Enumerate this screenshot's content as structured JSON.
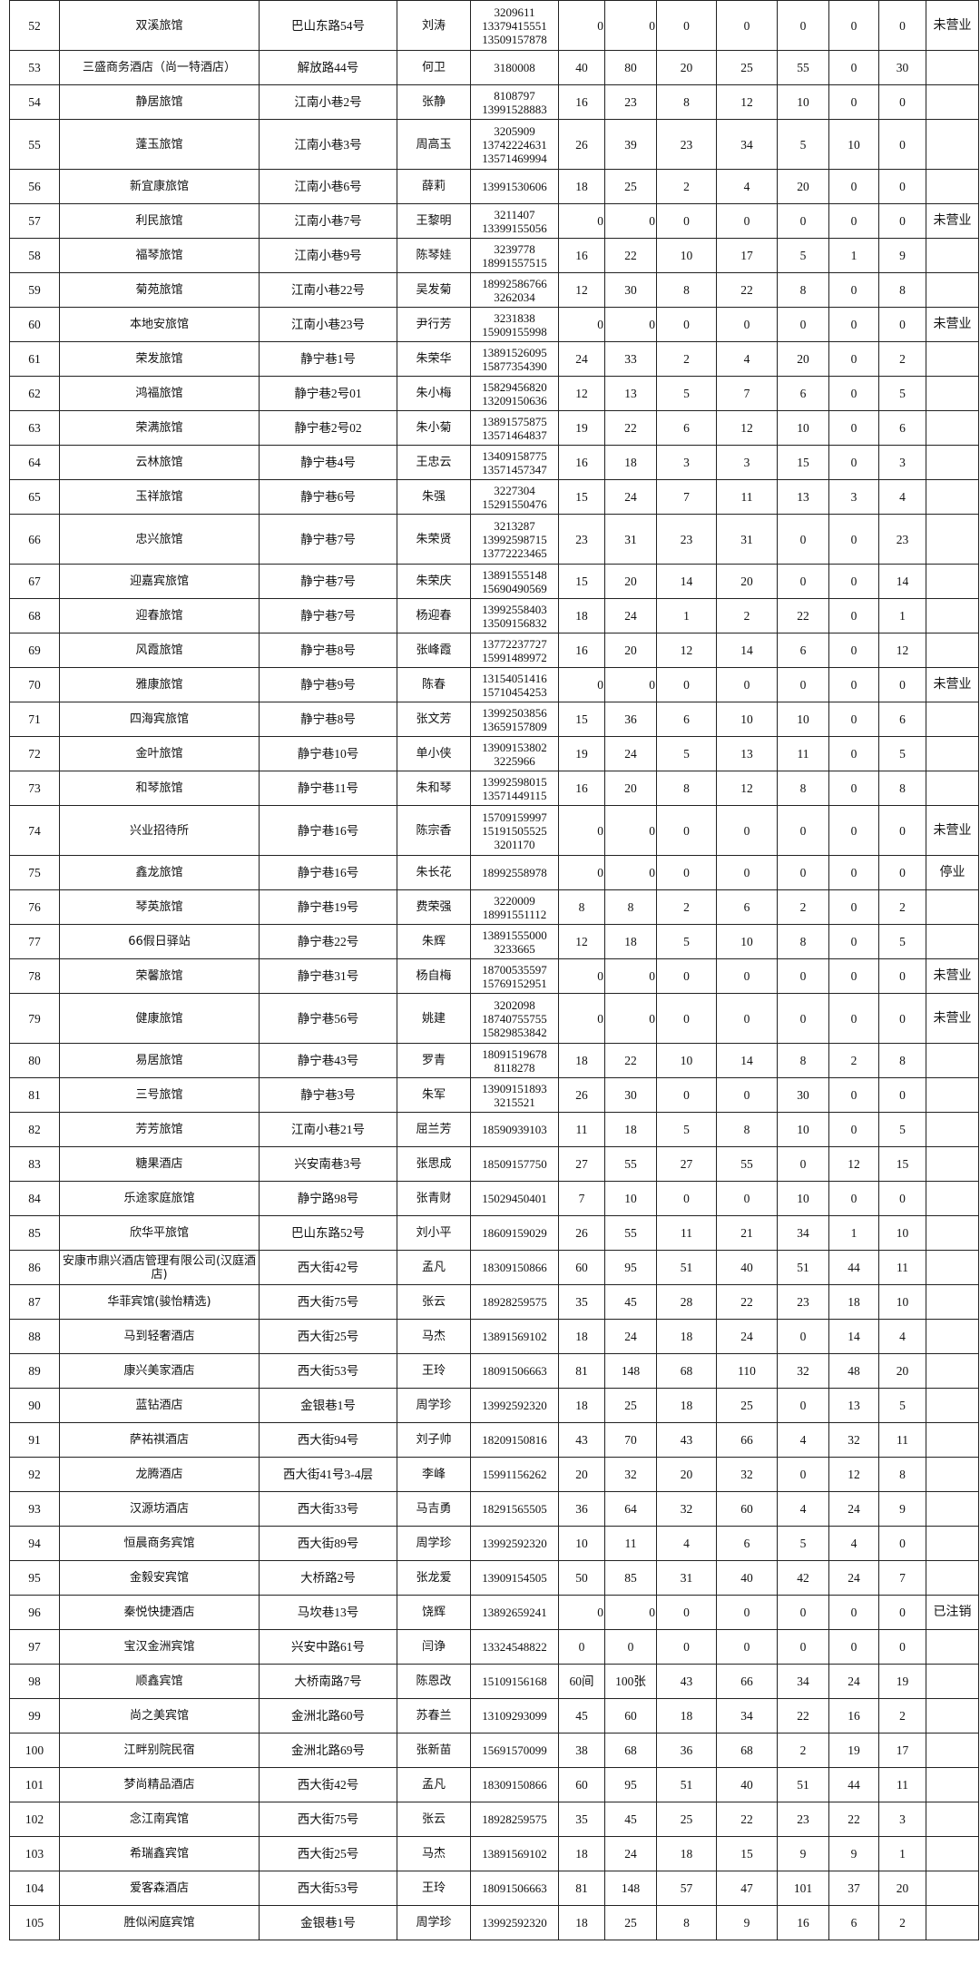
{
  "rows": [
    {
      "no": "52",
      "name": "双溪旅馆",
      "address": "巴山东路54号",
      "person": "刘涛",
      "phone": "3209611\n13379415551\n13509157878",
      "v": [
        "0",
        "0",
        "0",
        "0",
        "0",
        "0",
        "0"
      ],
      "remark": "未营业"
    },
    {
      "no": "53",
      "name": "三盛商务酒店（尚一特酒店）",
      "address": "解放路44号",
      "person": "何卫",
      "phone": "3180008",
      "v": [
        "40",
        "80",
        "20",
        "25",
        "55",
        "0",
        "30"
      ],
      "remark": ""
    },
    {
      "no": "54",
      "name": "静居旅馆",
      "address": "江南小巷2号",
      "person": "张静",
      "phone": "8108797\n13991528883",
      "v": [
        "16",
        "23",
        "8",
        "12",
        "10",
        "0",
        "0"
      ],
      "remark": ""
    },
    {
      "no": "55",
      "name": "蓬玉旅馆",
      "address": "江南小巷3号",
      "person": "周高玉",
      "phone": "3205909\n13742224631\n13571469994",
      "v": [
        "26",
        "39",
        "23",
        "34",
        "5",
        "10",
        "0"
      ],
      "remark": ""
    },
    {
      "no": "56",
      "name": "新宜康旅馆",
      "address": "江南小巷6号",
      "person": "薛莉",
      "phone": "13991530606",
      "v": [
        "18",
        "25",
        "2",
        "4",
        "20",
        "0",
        "0"
      ],
      "remark": ""
    },
    {
      "no": "57",
      "name": "利民旅馆",
      "address": "江南小巷7号",
      "person": "王黎明",
      "phone": "3211407\n13399155056",
      "v": [
        "0",
        "0",
        "0",
        "0",
        "0",
        "0",
        "0"
      ],
      "remark": "未营业"
    },
    {
      "no": "58",
      "name": "福琴旅馆",
      "address": "江南小巷9号",
      "person": "陈琴娃",
      "phone": "3239778\n18991557515",
      "v": [
        "16",
        "22",
        "10",
        "17",
        "5",
        "1",
        "9"
      ],
      "remark": ""
    },
    {
      "no": "59",
      "name": "菊苑旅馆",
      "address": "江南小巷22号",
      "person": "吴发菊",
      "phone": "18992586766\n3262034",
      "v": [
        "12",
        "30",
        "8",
        "22",
        "8",
        "0",
        "8"
      ],
      "remark": ""
    },
    {
      "no": "60",
      "name": "本地安旅馆",
      "address": "江南小巷23号",
      "person": "尹行芳",
      "phone": "3231838\n15909155998",
      "v": [
        "0",
        "0",
        "0",
        "0",
        "0",
        "0",
        "0"
      ],
      "remark": "未营业"
    },
    {
      "no": "61",
      "name": "荣发旅馆",
      "address": "静宁巷1号",
      "person": "朱荣华",
      "phone": "13891526095\n15877354390",
      "v": [
        "24",
        "33",
        "2",
        "4",
        "20",
        "0",
        "2"
      ],
      "remark": ""
    },
    {
      "no": "62",
      "name": "鸿福旅馆",
      "address": "静宁巷2号01",
      "person": "朱小梅",
      "phone": "15829456820\n13209150636",
      "v": [
        "12",
        "13",
        "5",
        "7",
        "6",
        "0",
        "5"
      ],
      "remark": ""
    },
    {
      "no": "63",
      "name": "荣满旅馆",
      "address": "静宁巷2号02",
      "person": "朱小菊",
      "phone": "13891575875\n13571464837",
      "v": [
        "19",
        "22",
        "6",
        "12",
        "10",
        "0",
        "6"
      ],
      "remark": ""
    },
    {
      "no": "64",
      "name": "云林旅馆",
      "address": "静宁巷4号",
      "person": "王忠云",
      "phone": "13409158775\n13571457347",
      "v": [
        "16",
        "18",
        "3",
        "3",
        "15",
        "0",
        "3"
      ],
      "remark": ""
    },
    {
      "no": "65",
      "name": "玉祥旅馆",
      "address": "静宁巷6号",
      "person": "朱强",
      "phone": "3227304\n15291550476",
      "v": [
        "15",
        "24",
        "7",
        "11",
        "13",
        "3",
        "4"
      ],
      "remark": ""
    },
    {
      "no": "66",
      "name": "忠兴旅馆",
      "address": "静宁巷7号",
      "person": "朱荣贤",
      "phone": "3213287\n13992598715\n13772223465",
      "v": [
        "23",
        "31",
        "23",
        "31",
        "0",
        "0",
        "23"
      ],
      "remark": ""
    },
    {
      "no": "67",
      "name": "迎嘉宾旅馆",
      "address": "静宁巷7号",
      "person": "朱荣庆",
      "phone": "13891555148\n15690490569",
      "v": [
        "15",
        "20",
        "14",
        "20",
        "0",
        "0",
        "14"
      ],
      "remark": ""
    },
    {
      "no": "68",
      "name": "迎春旅馆",
      "address": "静宁巷7号",
      "person": "杨迎春",
      "phone": "13992558403\n13509156832",
      "v": [
        "18",
        "24",
        "1",
        "2",
        "22",
        "0",
        "1"
      ],
      "remark": ""
    },
    {
      "no": "69",
      "name": "风霞旅馆",
      "address": "静宁巷8号",
      "person": "张峰霞",
      "phone": "13772237727\n15991489972",
      "v": [
        "16",
        "20",
        "12",
        "14",
        "6",
        "0",
        "12"
      ],
      "remark": ""
    },
    {
      "no": "70",
      "name": "雅康旅馆",
      "address": "静宁巷9号",
      "person": "陈春",
      "phone": "13154051416\n15710454253",
      "v": [
        "0",
        "0",
        "0",
        "0",
        "0",
        "0",
        "0"
      ],
      "remark": "未营业"
    },
    {
      "no": "71",
      "name": "四海宾旅馆",
      "address": "静宁巷8号",
      "person": "张文芳",
      "phone": "13992503856\n13659157809",
      "v": [
        "15",
        "36",
        "6",
        "10",
        "10",
        "0",
        "6"
      ],
      "remark": ""
    },
    {
      "no": "72",
      "name": "金叶旅馆",
      "address": "静宁巷10号",
      "person": "单小侠",
      "phone": "13909153802\n3225966",
      "v": [
        "19",
        "24",
        "5",
        "13",
        "11",
        "0",
        "5"
      ],
      "remark": ""
    },
    {
      "no": "73",
      "name": "和琴旅馆",
      "address": "静宁巷11号",
      "person": "朱和琴",
      "phone": "13992598015\n13571449115",
      "v": [
        "16",
        "20",
        "8",
        "12",
        "8",
        "0",
        "8"
      ],
      "remark": ""
    },
    {
      "no": "74",
      "name": "兴业招待所",
      "address": "静宁巷16号",
      "person": "陈宗香",
      "phone": "15709159997\n15191505525\n3201170",
      "v": [
        "0",
        "0",
        "0",
        "0",
        "0",
        "0",
        "0"
      ],
      "remark": "未营业"
    },
    {
      "no": "75",
      "name": "鑫龙旅馆",
      "address": "静宁巷16号",
      "person": "朱长花",
      "phone": "18992558978",
      "v": [
        "0",
        "0",
        "0",
        "0",
        "0",
        "0",
        "0"
      ],
      "remark": "停业"
    },
    {
      "no": "76",
      "name": "琴英旅馆",
      "address": "静宁巷19号",
      "person": "费荣强",
      "phone": "3220009\n18991551112",
      "v": [
        "8",
        "8",
        "2",
        "6",
        "2",
        "0",
        "2"
      ],
      "remark": ""
    },
    {
      "no": "77",
      "name": "66假日驿站",
      "address": "静宁巷22号",
      "person": "朱辉",
      "phone": "13891555000\n3233665",
      "v": [
        "12",
        "18",
        "5",
        "10",
        "8",
        "0",
        "5"
      ],
      "remark": ""
    },
    {
      "no": "78",
      "name": "荣馨旅馆",
      "address": "静宁巷31号",
      "person": "杨自梅",
      "phone": "18700535597\n15769152951",
      "v": [
        "0",
        "0",
        "0",
        "0",
        "0",
        "0",
        "0"
      ],
      "remark": "未营业"
    },
    {
      "no": "79",
      "name": "健康旅馆",
      "address": "静宁巷56号",
      "person": "姚建",
      "phone": "3202098\n18740755755\n15829853842",
      "v": [
        "0",
        "0",
        "0",
        "0",
        "0",
        "0",
        "0"
      ],
      "remark": "未营业"
    },
    {
      "no": "80",
      "name": "易居旅馆",
      "address": "静宁巷43号",
      "person": "罗青",
      "phone": "18091519678\n8118278",
      "v": [
        "18",
        "22",
        "10",
        "14",
        "8",
        "2",
        "8"
      ],
      "remark": ""
    },
    {
      "no": "81",
      "name": "三号旅馆",
      "address": "静宁巷3号",
      "person": "朱军",
      "phone": "13909151893\n3215521",
      "v": [
        "26",
        "30",
        "0",
        "0",
        "30",
        "0",
        "0"
      ],
      "remark": ""
    },
    {
      "no": "82",
      "name": "芳芳旅馆",
      "address": "江南小巷21号",
      "person": "屈兰芳",
      "phone": "18590939103",
      "v": [
        "11",
        "18",
        "5",
        "8",
        "10",
        "0",
        "5"
      ],
      "remark": ""
    },
    {
      "no": "83",
      "name": "糖果酒店",
      "address": "兴安南巷3号",
      "person": "张思成",
      "phone": "18509157750",
      "v": [
        "27",
        "55",
        "27",
        "55",
        "0",
        "12",
        "15"
      ],
      "remark": ""
    },
    {
      "no": "84",
      "name": "乐途家庭旅馆",
      "address": "静宁路98号",
      "person": "张青财",
      "phone": "15029450401",
      "v": [
        "7",
        "10",
        "0",
        "0",
        "10",
        "0",
        "0"
      ],
      "remark": ""
    },
    {
      "no": "85",
      "name": "欣华平旅馆",
      "address": "巴山东路52号",
      "person": "刘小平",
      "phone": "18609159029",
      "v": [
        "26",
        "55",
        "11",
        "21",
        "34",
        "1",
        "10"
      ],
      "remark": ""
    },
    {
      "no": "86",
      "name": "安康市鼎兴酒店管理有限公司(汉庭酒店)",
      "address": "西大街42号",
      "person": "孟凡",
      "phone": "18309150866",
      "v": [
        "60",
        "95",
        "51",
        "40",
        "51",
        "44",
        "11"
      ],
      "remark": ""
    },
    {
      "no": "87",
      "name": "华菲宾馆(骏怡精选)",
      "address": "西大街75号",
      "person": "张云",
      "phone": "18928259575",
      "v": [
        "35",
        "45",
        "28",
        "22",
        "23",
        "18",
        "10"
      ],
      "remark": ""
    },
    {
      "no": "88",
      "name": "马到轻奢酒店",
      "address": "西大街25号",
      "person": "马杰",
      "phone": "13891569102",
      "v": [
        "18",
        "24",
        "18",
        "24",
        "0",
        "14",
        "4"
      ],
      "remark": ""
    },
    {
      "no": "89",
      "name": "康兴美家酒店",
      "address": "西大街53号",
      "person": "王玲",
      "phone": "18091506663",
      "v": [
        "81",
        "148",
        "68",
        "110",
        "32",
        "48",
        "20"
      ],
      "remark": ""
    },
    {
      "no": "90",
      "name": "蓝钻酒店",
      "address": "金银巷1号",
      "person": "周学珍",
      "phone": "13992592320",
      "v": [
        "18",
        "25",
        "18",
        "25",
        "0",
        "13",
        "5"
      ],
      "remark": ""
    },
    {
      "no": "91",
      "name": "萨祐祺酒店",
      "address": "西大街94号",
      "person": "刘子帅",
      "phone": "18209150816",
      "v": [
        "43",
        "70",
        "43",
        "66",
        "4",
        "32",
        "11"
      ],
      "remark": ""
    },
    {
      "no": "92",
      "name": "龙腾酒店",
      "address": "西大街41号3-4层",
      "person": "李峰",
      "phone": "15991156262",
      "v": [
        "20",
        "32",
        "20",
        "32",
        "0",
        "12",
        "8"
      ],
      "remark": ""
    },
    {
      "no": "93",
      "name": "汉源坊酒店",
      "address": "西大街33号",
      "person": "马吉勇",
      "phone": "18291565505",
      "v": [
        "36",
        "64",
        "32",
        "60",
        "4",
        "24",
        "9"
      ],
      "remark": ""
    },
    {
      "no": "94",
      "name": "恒晨商务宾馆",
      "address": "西大街89号",
      "person": "周学珍",
      "phone": "13992592320",
      "v": [
        "10",
        "11",
        "4",
        "6",
        "5",
        "4",
        "0"
      ],
      "remark": ""
    },
    {
      "no": "95",
      "name": "金毅安宾馆",
      "address": "大桥路2号",
      "person": "张龙爱",
      "phone": "13909154505",
      "v": [
        "50",
        "85",
        "31",
        "40",
        "42",
        "24",
        "7"
      ],
      "remark": ""
    },
    {
      "no": "96",
      "name": "秦悦快捷酒店",
      "address": "马坎巷13号",
      "person": "饶辉",
      "phone": "13892659241",
      "v": [
        "0",
        "0",
        "0",
        "0",
        "0",
        "0",
        "0"
      ],
      "remark": "已注销"
    },
    {
      "no": "97",
      "name": "宝汉金洲宾馆",
      "address": "兴安中路61号",
      "person": "闫诤",
      "phone": "13324548822",
      "v": [
        "0",
        "0",
        "0",
        "0",
        "0",
        "0",
        "0"
      ],
      "remark": ""
    },
    {
      "no": "98",
      "name": "顺鑫宾馆",
      "address": "大桥南路7号",
      "person": "陈恩改",
      "phone": "15109156168",
      "v": [
        "60间",
        "100张",
        "43",
        "66",
        "34",
        "24",
        "19"
      ],
      "remark": ""
    },
    {
      "no": "99",
      "name": "尚之美宾馆",
      "address": "金洲北路60号",
      "person": "苏春兰",
      "phone": "13109293099",
      "v": [
        "45",
        "60",
        "18",
        "34",
        "22",
        "16",
        "2"
      ],
      "remark": ""
    },
    {
      "no": "100",
      "name": "江畔别院民宿",
      "address": "金洲北路69号",
      "person": "张新苗",
      "phone": "15691570099",
      "v": [
        "38",
        "68",
        "36",
        "68",
        "2",
        "19",
        "17"
      ],
      "remark": ""
    },
    {
      "no": "101",
      "name": "梦尚精品酒店",
      "address": "西大街42号",
      "person": "孟凡",
      "phone": "18309150866",
      "v": [
        "60",
        "95",
        "51",
        "40",
        "51",
        "44",
        "11"
      ],
      "remark": ""
    },
    {
      "no": "102",
      "name": "念江南宾馆",
      "address": "西大街75号",
      "person": "张云",
      "phone": "18928259575",
      "v": [
        "35",
        "45",
        "25",
        "22",
        "23",
        "22",
        "3"
      ],
      "remark": ""
    },
    {
      "no": "103",
      "name": "希瑞鑫宾馆",
      "address": "西大街25号",
      "person": "马杰",
      "phone": "13891569102",
      "v": [
        "18",
        "24",
        "18",
        "15",
        "9",
        "9",
        "1"
      ],
      "remark": ""
    },
    {
      "no": "104",
      "name": "爱客森酒店",
      "address": "西大街53号",
      "person": "王玲",
      "phone": "18091506663",
      "v": [
        "81",
        "148",
        "57",
        "47",
        "101",
        "37",
        "20"
      ],
      "remark": ""
    },
    {
      "no": "105",
      "name": "胜似闲庭宾馆",
      "address": "金银巷1号",
      "person": "周学珍",
      "phone": "13992592320",
      "v": [
        "18",
        "25",
        "8",
        "9",
        "16",
        "6",
        "2"
      ],
      "remark": ""
    }
  ]
}
